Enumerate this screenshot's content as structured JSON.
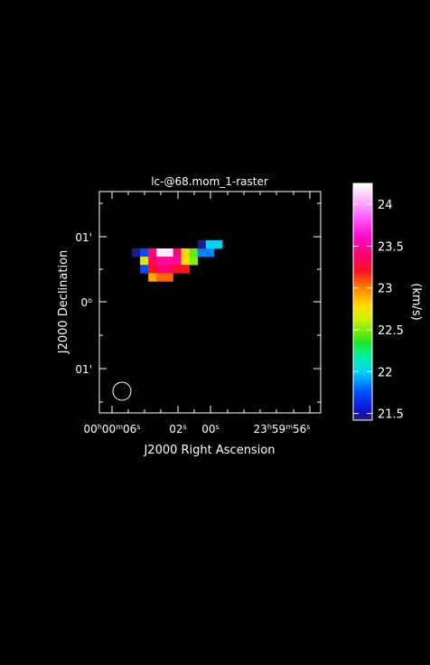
{
  "chart_data": {
    "type": "heatmap",
    "title": "lc-@68.mom_1-raster",
    "xlabel": "J2000 Right Ascension",
    "ylabel": "J2000 Declination",
    "colorbar_label": "(km/s)",
    "colorbar_range": [
      21.42,
      24.25
    ],
    "colorbar_ticks": [
      "24",
      "23.5",
      "23",
      "22.5",
      "22",
      "21.5"
    ],
    "colorbar_tick_values": [
      24,
      23.5,
      23,
      22.5,
      22,
      21.5
    ],
    "x_tick_labels": [
      {
        "pre": "00",
        "s1": "h",
        "mid": "00",
        "s2": "m",
        "post": "06",
        "s3": "s"
      },
      {
        "pre": "",
        "s1": "",
        "mid": "",
        "s2": "",
        "post": "02",
        "s3": "s"
      },
      {
        "pre": "",
        "s1": "",
        "mid": "",
        "s2": "",
        "post": "00",
        "s3": "s"
      },
      {
        "pre": "23",
        "s1": "h",
        "mid": "59",
        "s2": "m",
        "post": "56",
        "s3": "s"
      }
    ],
    "y_tick_labels": [
      {
        "text": "01'",
        "sup": ""
      },
      {
        "text": "0",
        "sup": "o"
      },
      {
        "text": "01'",
        "sup": ""
      }
    ],
    "beam": "circle",
    "pixels": [
      {
        "col": 0,
        "row": 0,
        "value": 21.45
      },
      {
        "col": 1,
        "row": 0,
        "value": 21.75
      },
      {
        "col": 2,
        "row": 0,
        "value": 23.45
      },
      {
        "col": 3,
        "row": 0,
        "value": 24.2
      },
      {
        "col": 4,
        "row": 0,
        "value": 24.2
      },
      {
        "col": 5,
        "row": 0,
        "value": 23.45
      },
      {
        "col": 6,
        "row": 0,
        "value": 22.8
      },
      {
        "col": 7,
        "row": 0,
        "value": 22.45
      },
      {
        "col": 8,
        "row": 0,
        "value": 21.85
      },
      {
        "col": 9,
        "row": 0,
        "value": 21.85
      },
      {
        "col": 8,
        "row": -1,
        "value": 21.45
      },
      {
        "col": 9,
        "row": -1,
        "value": 22.0
      },
      {
        "col": 10,
        "row": -1,
        "value": 22.0
      },
      {
        "col": 1,
        "row": 1,
        "value": 22.7
      },
      {
        "col": 2,
        "row": 1,
        "value": 23.35
      },
      {
        "col": 3,
        "row": 1,
        "value": 23.5
      },
      {
        "col": 4,
        "row": 1,
        "value": 23.5
      },
      {
        "col": 5,
        "row": 1,
        "value": 23.5
      },
      {
        "col": 6,
        "row": 1,
        "value": 22.75
      },
      {
        "col": 7,
        "row": 1,
        "value": 22.5
      },
      {
        "col": 1,
        "row": 2,
        "value": 21.75
      },
      {
        "col": 2,
        "row": 2,
        "value": 23.2
      },
      {
        "col": 3,
        "row": 2,
        "value": 23.4
      },
      {
        "col": 4,
        "row": 2,
        "value": 23.4
      },
      {
        "col": 5,
        "row": 2,
        "value": 23.2
      },
      {
        "col": 6,
        "row": 2,
        "value": 23.2
      },
      {
        "col": 2,
        "row": 3,
        "value": 22.9
      },
      {
        "col": 3,
        "row": 3,
        "value": 23.05
      },
      {
        "col": 4,
        "row": 3,
        "value": 23.05
      }
    ]
  }
}
